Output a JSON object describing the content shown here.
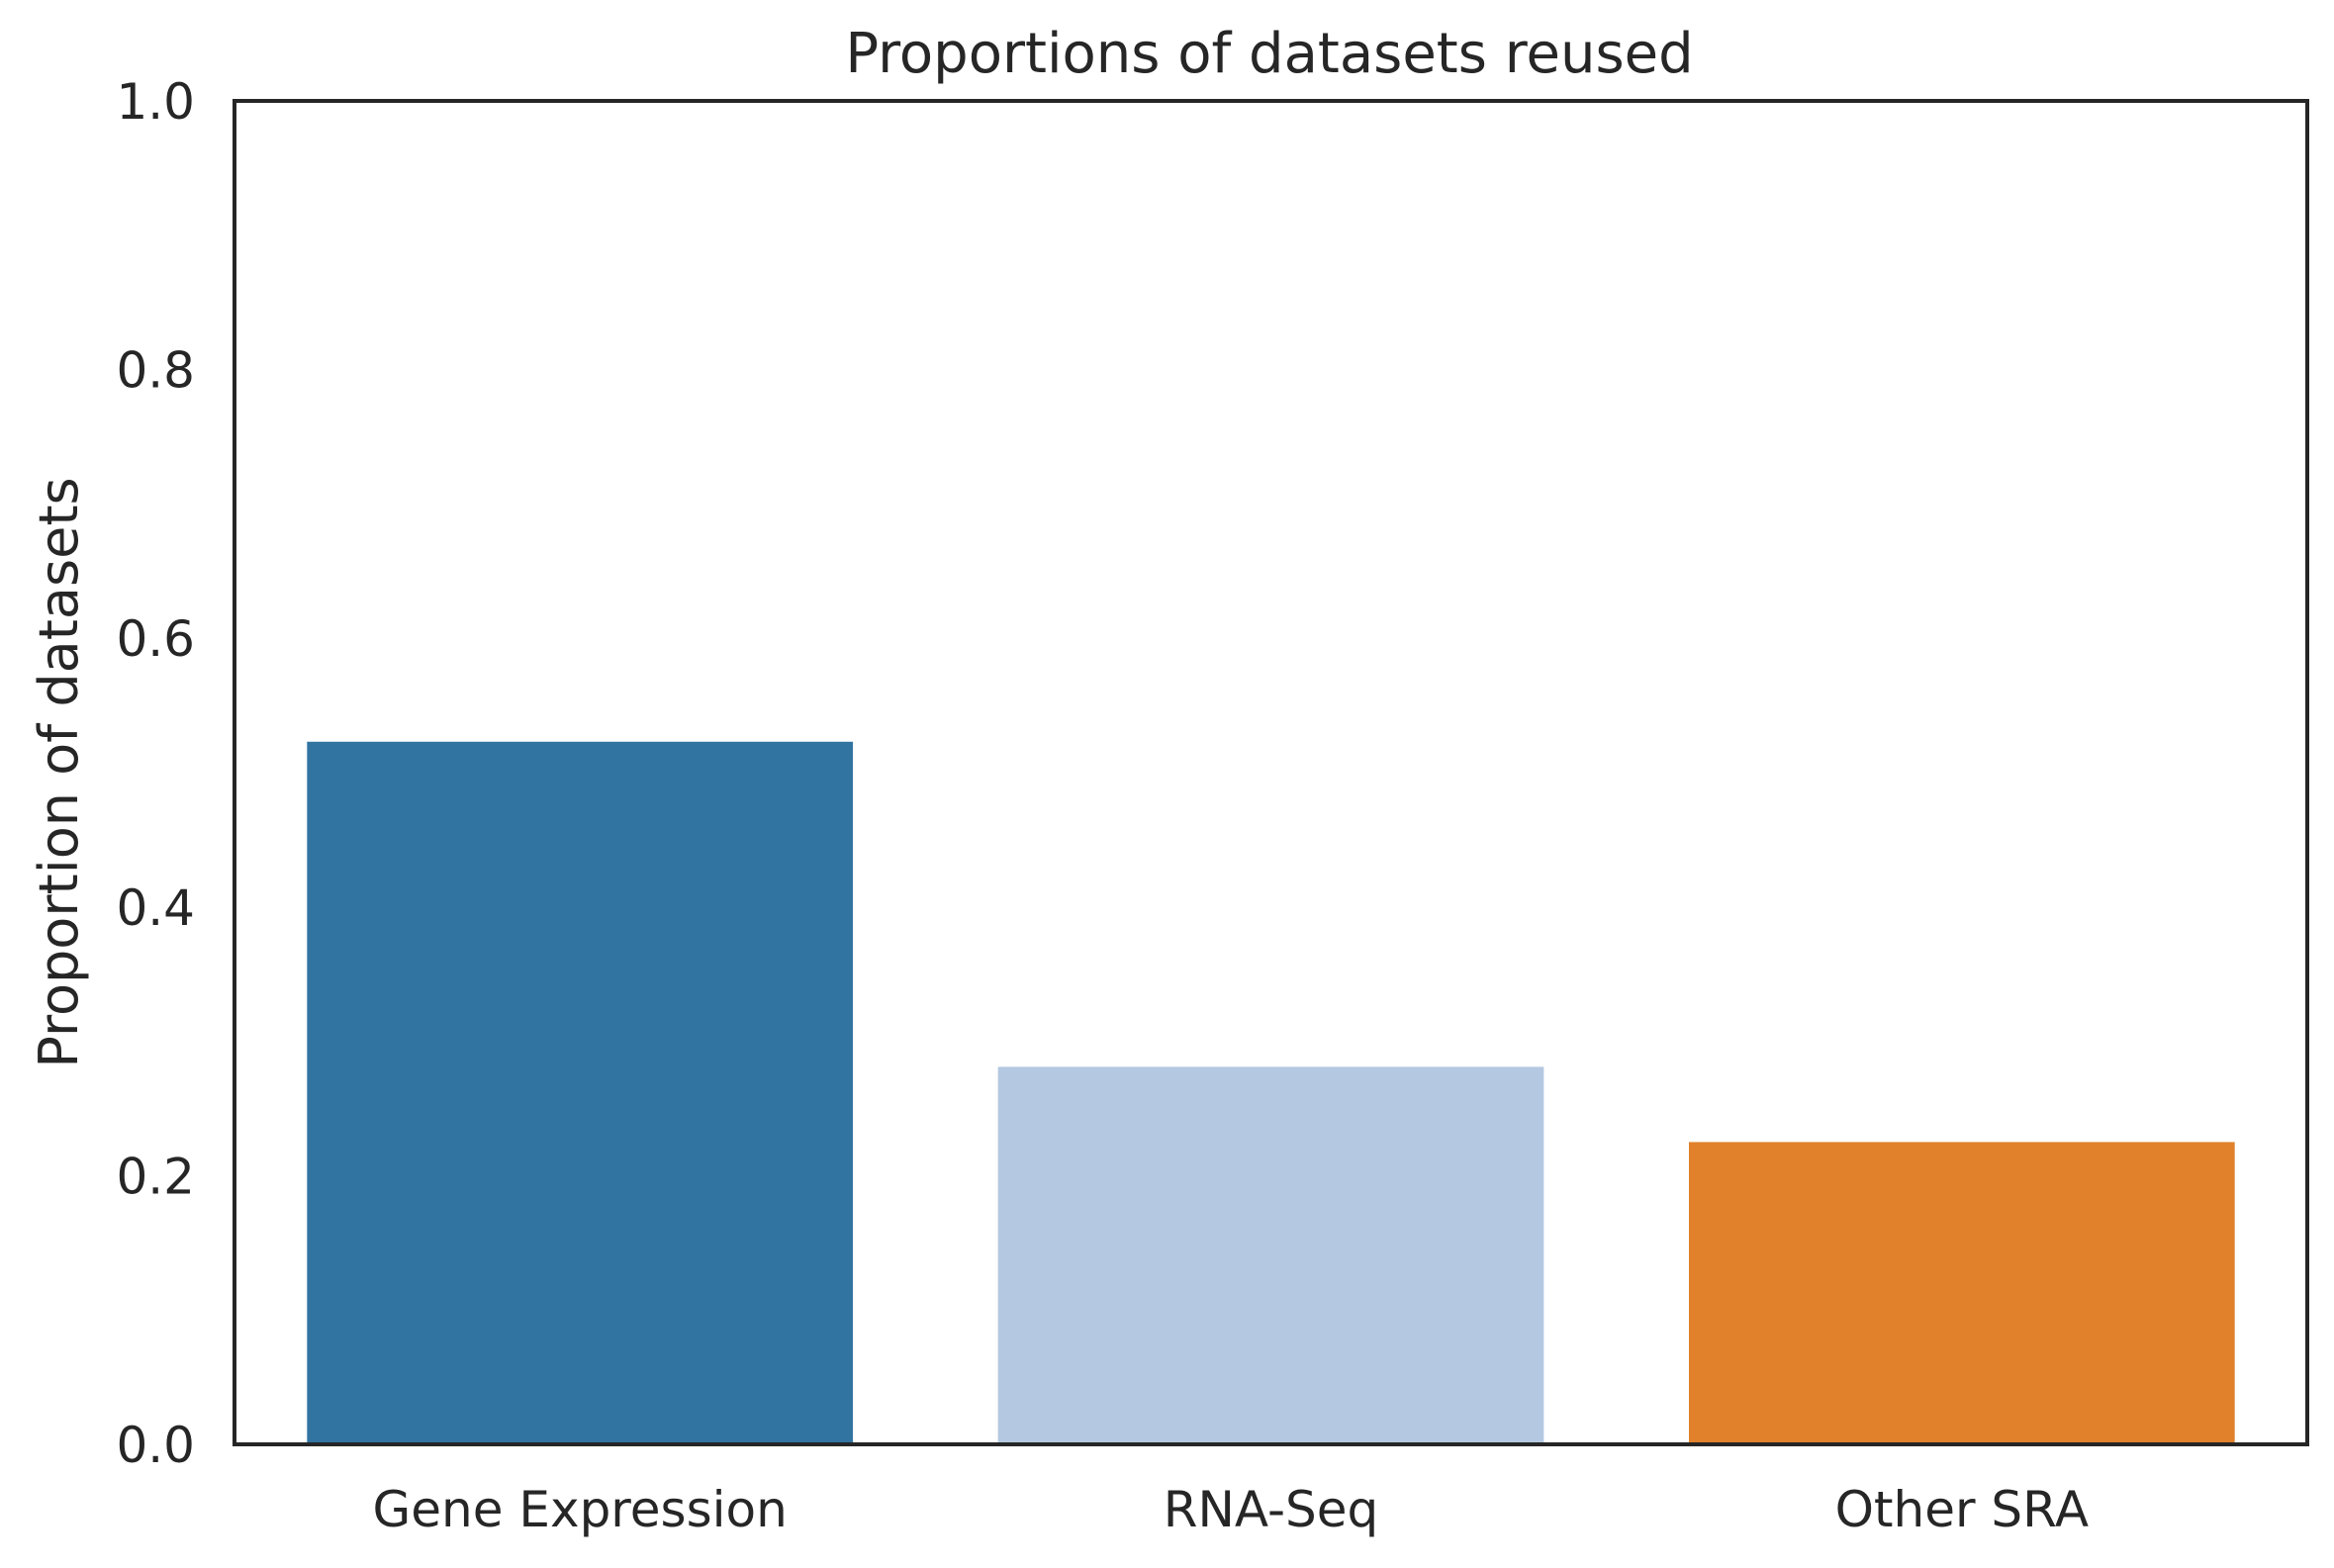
{
  "chart_data": {
    "type": "bar",
    "title": "Proportions of datasets reused",
    "xlabel": "",
    "ylabel": "Proportion of datasets",
    "categories": [
      "Gene Expression",
      "RNA-Seq",
      "Other SRA"
    ],
    "values": [
      0.523,
      0.281,
      0.225
    ],
    "colors": [
      "#3274a1",
      "#b4c8e1",
      "#e1812c"
    ],
    "ylim": [
      0,
      1.0
    ],
    "yticks": [
      0.0,
      0.2,
      0.4,
      0.6,
      0.8,
      1.0
    ],
    "ytick_labels": [
      "0.0",
      "0.2",
      "0.4",
      "0.6",
      "0.8",
      "1.0"
    ],
    "grid": false,
    "legend": "none",
    "frame_color": "#262626"
  }
}
